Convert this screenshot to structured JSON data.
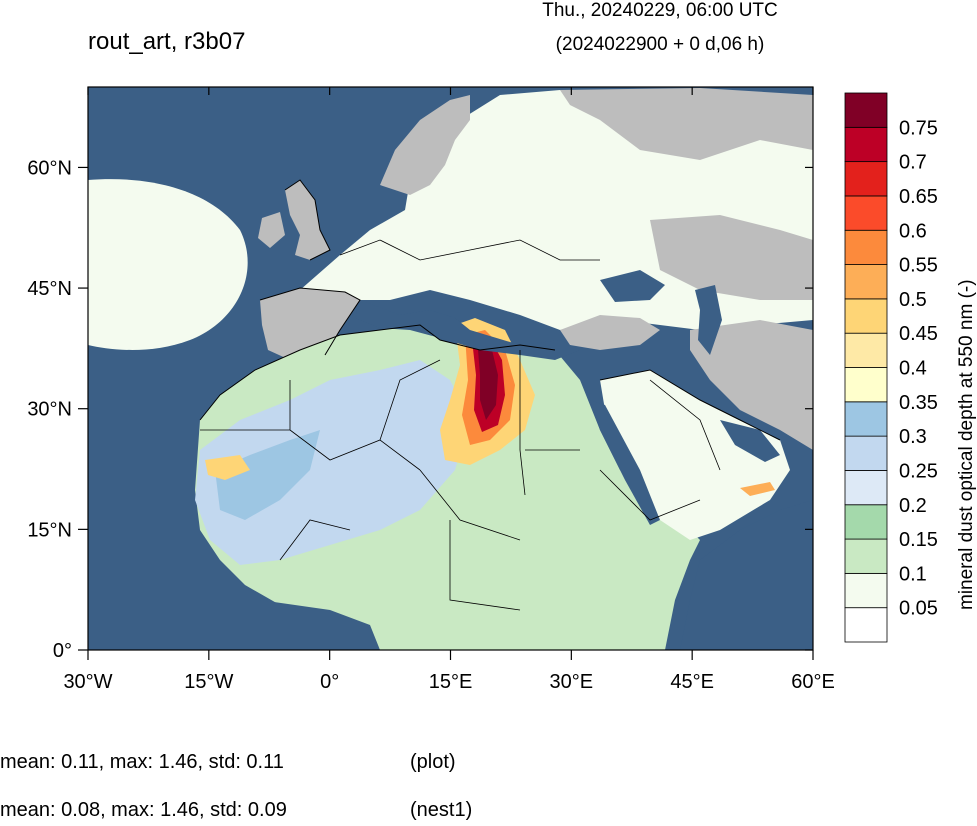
{
  "header": {
    "title": "rout_art, r3b07",
    "date_line1": "Thu., 20240229, 06:00 UTC",
    "date_line2": "(2024022900 + 0 d,06 h)"
  },
  "map": {
    "lon_labels": [
      "30°W",
      "15°W",
      "0°",
      "15°E",
      "30°E",
      "45°E",
      "60°E"
    ],
    "lat_labels": [
      "60°N",
      "45°N",
      "30°N",
      "15°N",
      "0°"
    ],
    "lon_values": [
      -30,
      -15,
      0,
      15,
      30,
      45,
      60
    ],
    "lat_values": [
      60,
      45,
      30,
      15,
      0
    ],
    "lon_range": [
      -30,
      60
    ],
    "lat_range": [
      0,
      70
    ],
    "colors": {
      "ocean": "#3b5f86",
      "land_nodata": "#bdbdbd"
    }
  },
  "colorbar": {
    "title": "mineral dust optical depth at 550 nm (-)",
    "labels": [
      "0.05",
      "0.1",
      "0.15",
      "0.2",
      "0.25",
      "0.3",
      "0.35",
      "0.4",
      "0.45",
      "0.5",
      "0.55",
      "0.6",
      "0.65",
      "0.7",
      "0.75"
    ],
    "colors": [
      "#ffffff",
      "#f4fbef",
      "#c9e9c3",
      "#a4d9ab",
      "#dde9f6",
      "#c2d8ef",
      "#9dc6e3",
      "#ffffcc",
      "#fee9a6",
      "#fed576",
      "#fdae57",
      "#fc8a3c",
      "#fb4b2a",
      "#e3211c",
      "#bd0026",
      "#800026"
    ]
  },
  "stats": {
    "plot": {
      "text": "mean: 0.11, max: 1.46, std: 0.11",
      "tag": "(plot)"
    },
    "nest1": {
      "text": "mean: 0.08, max: 1.46, std: 0.09",
      "tag": "(nest1)"
    }
  }
}
